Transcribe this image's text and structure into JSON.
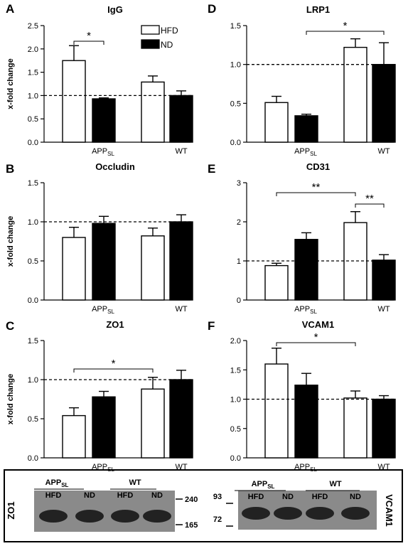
{
  "chart_data": [
    {
      "panel": "A",
      "title": "IgG",
      "type": "bar",
      "ylabel": "x-fold change",
      "ylim": [
        0,
        2.5
      ],
      "yticks": [
        "0.0",
        "0.5",
        "1.0",
        "1.5",
        "2.0",
        "2.5"
      ],
      "yticks_num": [
        0,
        0.5,
        1.0,
        1.5,
        2.0,
        2.5
      ],
      "categories": [
        "APP",
        "WT"
      ],
      "category_subscripts": [
        "SL",
        ""
      ],
      "series": [
        {
          "name": "HFD",
          "color": "#ffffff",
          "values": [
            1.75,
            1.29
          ],
          "errors": [
            0.32,
            0.13
          ]
        },
        {
          "name": "ND",
          "color": "#000000",
          "values": [
            0.93,
            1.0
          ],
          "errors": [
            0.02,
            0.1
          ]
        }
      ],
      "reference_line": 1.0,
      "legend": {
        "position": "top-right",
        "items": [
          "HFD",
          "ND"
        ]
      },
      "significance": [
        {
          "from": "APP:HFD",
          "to": "APP:ND",
          "label": "*"
        }
      ]
    },
    {
      "panel": "D",
      "title": "LRP1",
      "type": "bar",
      "ylabel": "",
      "ylim": [
        0,
        1.5
      ],
      "yticks": [
        "0.0",
        "0.5",
        "1.0",
        "1.5"
      ],
      "yticks_num": [
        0,
        0.5,
        1.0,
        1.5
      ],
      "categories": [
        "APP",
        "WT"
      ],
      "category_subscripts": [
        "SL",
        ""
      ],
      "series": [
        {
          "name": "HFD",
          "color": "#ffffff",
          "values": [
            0.51,
            1.22
          ],
          "errors": [
            0.08,
            0.11
          ]
        },
        {
          "name": "ND",
          "color": "#000000",
          "values": [
            0.34,
            1.0
          ],
          "errors": [
            0.02,
            0.28
          ]
        }
      ],
      "reference_line": 1.0,
      "significance": [
        {
          "from": "APP:ND",
          "to": "WT:ND",
          "label": "*"
        }
      ]
    },
    {
      "panel": "B",
      "title": "Occludin",
      "type": "bar",
      "ylabel": "x-fold change",
      "ylim": [
        0,
        1.5
      ],
      "yticks": [
        "0.0",
        "0.5",
        "1.0",
        "1.5"
      ],
      "yticks_num": [
        0,
        0.5,
        1.0,
        1.5
      ],
      "categories": [
        "APP",
        "WT"
      ],
      "category_subscripts": [
        "SL",
        ""
      ],
      "series": [
        {
          "name": "HFD",
          "color": "#ffffff",
          "values": [
            0.8,
            0.82
          ],
          "errors": [
            0.13,
            0.1
          ]
        },
        {
          "name": "ND",
          "color": "#000000",
          "values": [
            0.98,
            1.0
          ],
          "errors": [
            0.09,
            0.09
          ]
        }
      ],
      "reference_line": 1.0,
      "significance": []
    },
    {
      "panel": "E",
      "title": "CD31",
      "type": "bar",
      "ylabel": "",
      "ylim": [
        0,
        3
      ],
      "yticks": [
        "0",
        "1",
        "2",
        "3"
      ],
      "yticks_num": [
        0,
        1,
        2,
        3
      ],
      "categories": [
        "APP",
        "WT"
      ],
      "category_subscripts": [
        "SL",
        ""
      ],
      "series": [
        {
          "name": "HFD",
          "color": "#ffffff",
          "values": [
            0.88,
            1.98
          ],
          "errors": [
            0.06,
            0.28
          ]
        },
        {
          "name": "ND",
          "color": "#000000",
          "values": [
            1.55,
            1.02
          ],
          "errors": [
            0.17,
            0.14
          ]
        }
      ],
      "reference_line": 1.0,
      "significance": [
        {
          "from": "APP:HFD",
          "to": "WT:HFD",
          "label": "**"
        },
        {
          "from": "WT:HFD",
          "to": "WT:ND",
          "label": "**"
        }
      ]
    },
    {
      "panel": "C",
      "title": "ZO1",
      "type": "bar",
      "ylabel": "x-fold change",
      "ylim": [
        0,
        1.5
      ],
      "yticks": [
        "0.0",
        "0.5",
        "1.0",
        "1.5"
      ],
      "yticks_num": [
        0,
        0.5,
        1.0,
        1.5
      ],
      "categories": [
        "APP",
        "WT"
      ],
      "category_subscripts": [
        "SL",
        ""
      ],
      "series": [
        {
          "name": "HFD",
          "color": "#ffffff",
          "values": [
            0.54,
            0.88
          ],
          "errors": [
            0.1,
            0.15
          ]
        },
        {
          "name": "ND",
          "color": "#000000",
          "values": [
            0.78,
            1.0
          ],
          "errors": [
            0.07,
            0.12
          ]
        }
      ],
      "reference_line": 1.0,
      "significance": [
        {
          "from": "APP:HFD",
          "to": "WT:HFD",
          "label": "*"
        }
      ]
    },
    {
      "panel": "F",
      "title": "VCAM1",
      "type": "bar",
      "ylabel": "",
      "ylim": [
        0,
        2.0
      ],
      "yticks": [
        "0.0",
        "0.5",
        "1.0",
        "1.5",
        "2.0"
      ],
      "yticks_num": [
        0,
        0.5,
        1.0,
        1.5,
        2.0
      ],
      "categories": [
        "APP",
        "WT"
      ],
      "category_subscripts": [
        "SL",
        ""
      ],
      "series": [
        {
          "name": "HFD",
          "color": "#ffffff",
          "values": [
            1.6,
            1.02
          ],
          "errors": [
            0.27,
            0.12
          ]
        },
        {
          "name": "ND",
          "color": "#000000",
          "values": [
            1.24,
            1.0
          ],
          "errors": [
            0.2,
            0.06
          ]
        }
      ],
      "reference_line": 1.0,
      "significance": [
        {
          "from": "APP:HFD",
          "to": "WT:HFD",
          "label": "*"
        }
      ]
    }
  ],
  "blots": [
    {
      "protein": "ZO1",
      "group_labels": [
        "APP",
        "WT"
      ],
      "group_subscripts": [
        "SL",
        ""
      ],
      "lane_labels": [
        "HFD",
        "ND",
        "HFD",
        "ND"
      ],
      "markers": [
        "240",
        "165"
      ]
    },
    {
      "protein": "VCAM1",
      "group_labels": [
        "APP",
        "WT"
      ],
      "group_subscripts": [
        "SL",
        ""
      ],
      "lane_labels": [
        "HFD",
        "ND",
        "HFD",
        "ND"
      ],
      "markers": [
        "93",
        "72"
      ]
    }
  ],
  "colors": {
    "hfd": "#ffffff",
    "nd": "#000000",
    "axis": "#000000",
    "blot_bg": "#8a8a8a",
    "band": "#2a2a2a"
  }
}
